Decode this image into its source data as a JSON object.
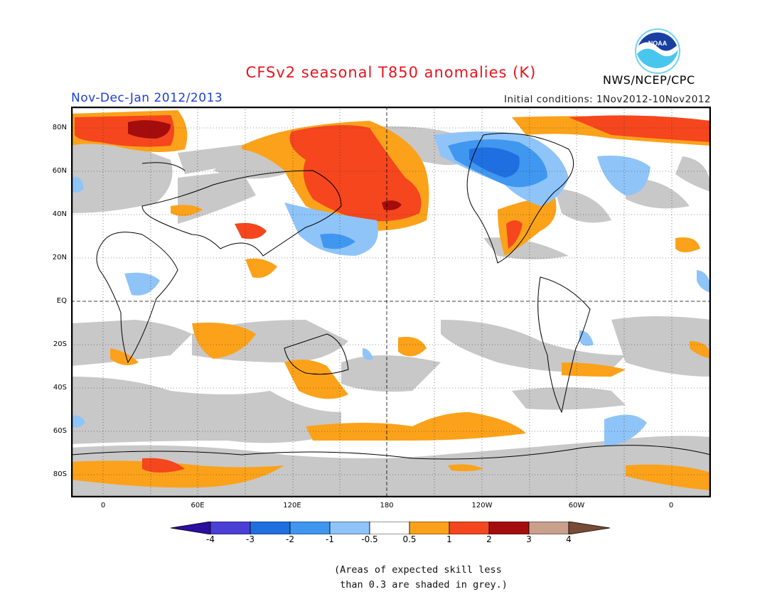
{
  "title": "CFSv2 seasonal T850 anomalies (K)",
  "period": "Nov-Dec-Jan 2012/2013",
  "initial_conditions": "Initial conditions: 1Nov2012-10Nov2012",
  "agency": "NWS/NCEP/CPC",
  "logo_text": "NOAA",
  "lat_labels": [
    "80N",
    "60N",
    "40N",
    "20N",
    "EQ",
    "20S",
    "40S",
    "60S",
    "80S"
  ],
  "lon_labels": [
    "0",
    "60E",
    "120E",
    "180",
    "120W",
    "60W",
    "0"
  ],
  "colorbar": {
    "labels": [
      "-4",
      "-3",
      "-2",
      "-1",
      "-0.5",
      "0.5",
      "1",
      "2",
      "3",
      "4"
    ],
    "colors": [
      "#2a0fa0",
      "#4a3fd6",
      "#1f6fe0",
      "#3f97f0",
      "#8fc4f8",
      "#ffffff",
      "#fba21a",
      "#f5461e",
      "#a50c0c",
      "#c8a08c",
      "#7a4a38"
    ]
  },
  "note_lines": [
    "(Areas of expected skill less",
    " than 0.3 are shaded in grey.)"
  ],
  "colors": {
    "grey": "#c8c8c8",
    "orange": "#fba21a",
    "red": "#f5461e",
    "darkred": "#a50c0c",
    "lightblue": "#8fc4f8",
    "blue": "#3f97f0",
    "darkblue": "#1f6fe0"
  }
}
